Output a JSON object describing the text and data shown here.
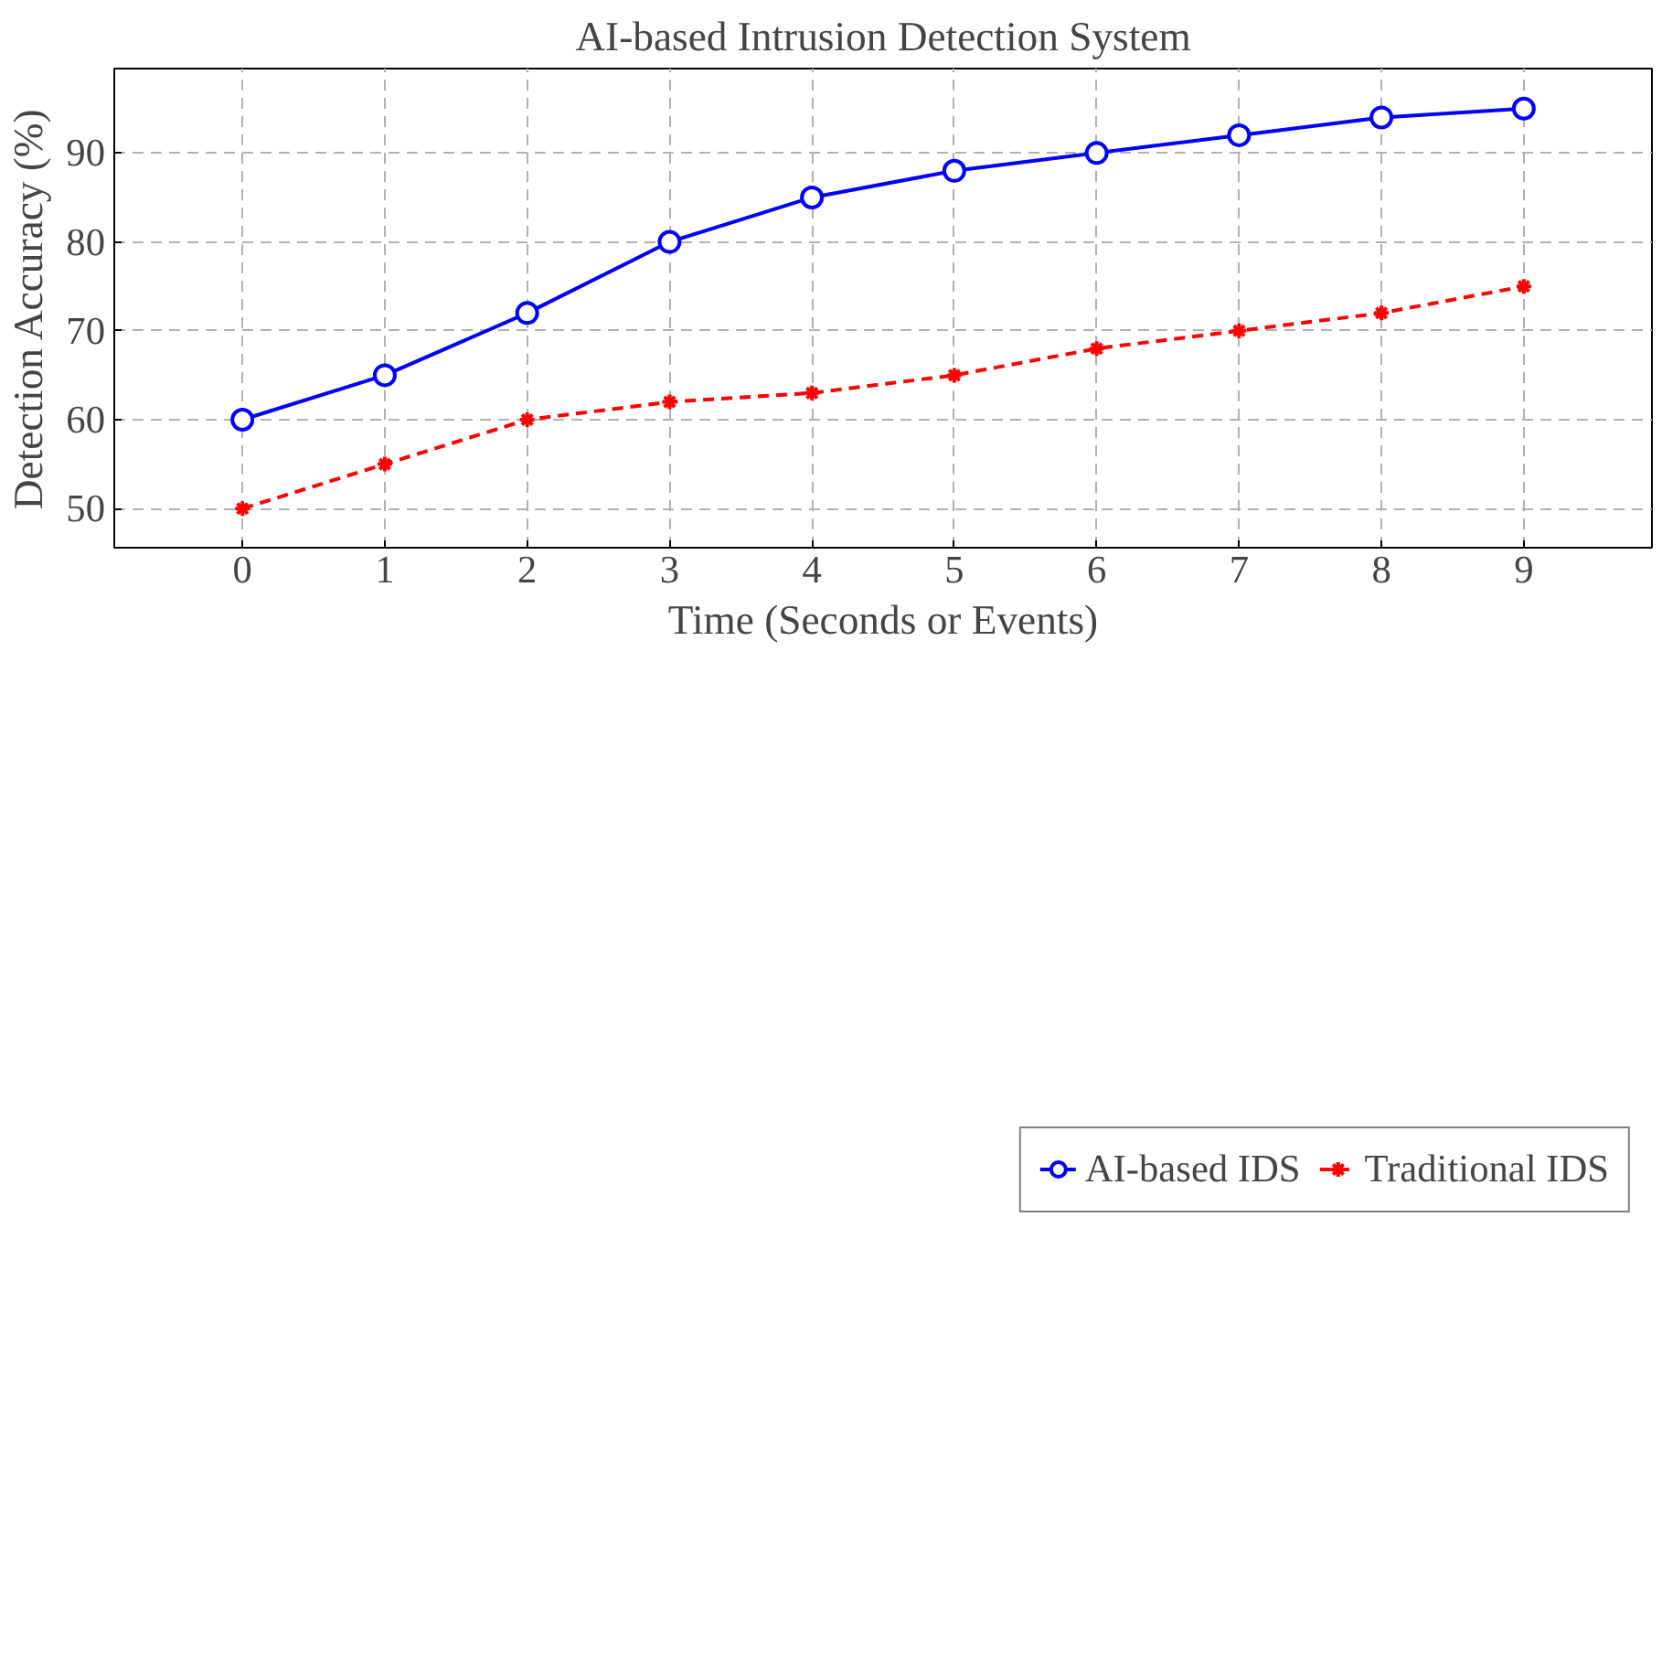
{
  "chart_data": {
    "type": "line",
    "title": "AI-based Intrusion Detection System",
    "xlabel": "Time (Seconds or Events)",
    "ylabel": "Detection Accuracy (%)",
    "x": [
      0,
      1,
      2,
      3,
      4,
      5,
      6,
      7,
      8,
      9
    ],
    "series": [
      {
        "name": "AI-based IDS",
        "color": "#0000ff",
        "values": [
          60,
          65,
          72,
          80,
          85,
          88,
          90,
          92,
          94,
          95
        ],
        "marker": "circle",
        "line_style": "solid"
      },
      {
        "name": "Traditional IDS",
        "color": "#ff0000",
        "values": [
          50,
          55,
          60,
          62,
          63,
          65,
          68,
          70,
          72,
          75
        ],
        "marker": "cross",
        "line_style": "dashed"
      }
    ],
    "xlim": [
      -0.9,
      9.9
    ],
    "ylim": [
      45.6,
      99.5
    ],
    "xticks": [
      0,
      1,
      2,
      3,
      4,
      5,
      6,
      7,
      8,
      9
    ],
    "yticks": [
      50,
      60,
      70,
      80,
      90
    ],
    "grid": true,
    "legend": "bottom"
  }
}
